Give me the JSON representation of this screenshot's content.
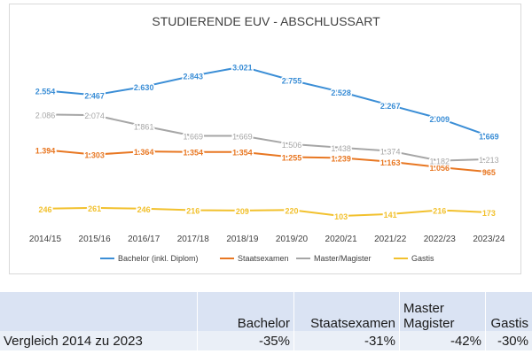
{
  "chart_data": {
    "type": "line",
    "title": "STUDIERENDE EUV - ABSCHLUSSART",
    "categories": [
      "2014/15",
      "2015/16",
      "2016/17",
      "2017/18",
      "2018/19",
      "2019/20",
      "2020/21",
      "2021/22",
      "2022/23",
      "2023/24"
    ],
    "ylim": [
      0,
      3200
    ],
    "legend_position": "bottom",
    "series": [
      {
        "name": "Bachelor (inkl. Diplom)",
        "color": "#3b8ed6",
        "values": [
          2554,
          2467,
          2630,
          2843,
          3021,
          2755,
          2528,
          2267,
          2009,
          1669
        ],
        "labels": [
          "2.554",
          "2.467",
          "2.630",
          "2.843",
          "3.021",
          "2.755",
          "2.528",
          "2.267",
          "2.009",
          "1.669"
        ]
      },
      {
        "name": "Staatsexamen",
        "color": "#e87722",
        "values": [
          1394,
          1303,
          1364,
          1354,
          1354,
          1255,
          1239,
          1163,
          1056,
          965
        ],
        "labels": [
          "1.394",
          "1.303",
          "1.364",
          "1.354",
          "1.354",
          "1.255",
          "1.239",
          "1.163",
          "1.056",
          "965"
        ]
      },
      {
        "name": "Master/Magister",
        "color": "#a6a6a6",
        "values": [
          2086,
          2074,
          1861,
          1669,
          1669,
          1506,
          1438,
          1374,
          1182,
          1213
        ],
        "labels": [
          "2.086",
          "2.074",
          "1.861",
          "1.669",
          "1.669",
          "1.506",
          "1.438",
          "1.374",
          "1.182",
          "1.213"
        ]
      },
      {
        "name": "Gastis",
        "color": "#f2c12e",
        "values": [
          246,
          261,
          246,
          216,
          209,
          220,
          103,
          141,
          216,
          173
        ],
        "labels": [
          "246",
          "261",
          "246",
          "216",
          "209",
          "220",
          "103",
          "141",
          "216",
          "173"
        ]
      }
    ]
  },
  "comparison": {
    "headers": {
      "bachelor": "Bachelor",
      "staatsexamen": "Staatsexamen",
      "master_line1": "Master",
      "master_line2": "Magister",
      "gastis": "Gastis"
    },
    "row_label": "Vergleich 2014 zu 2023",
    "values": {
      "bachelor": "-35%",
      "staatsexamen": "-31%",
      "master": "-42%",
      "gastis": "-30%"
    }
  }
}
